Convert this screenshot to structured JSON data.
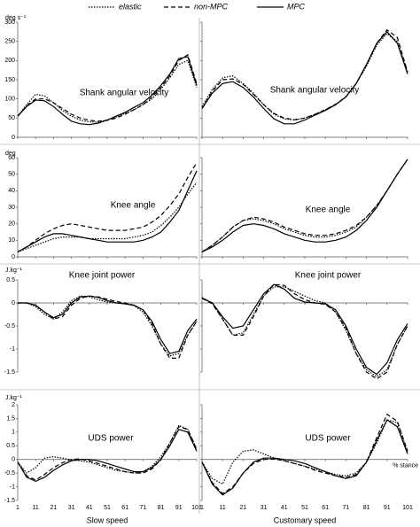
{
  "legend": [
    {
      "name": "elastic",
      "dash": "1.5 1.5"
    },
    {
      "name": "non-MPC",
      "dash": "5 3"
    },
    {
      "name": "MPC",
      "dash": "none"
    }
  ],
  "chart_data": [
    {
      "type": "line",
      "title": "Shank angular velocity",
      "ylabel": "deg s⁻¹",
      "ytick_labels": true,
      "xtick_labels": false,
      "x": [
        1,
        6,
        11,
        16,
        21,
        26,
        31,
        36,
        41,
        46,
        51,
        56,
        61,
        66,
        71,
        76,
        81,
        86,
        91,
        96,
        101
      ],
      "xlim": [
        1,
        101
      ],
      "xticks": [
        1,
        11,
        21,
        31,
        41,
        51,
        61,
        71,
        81,
        91,
        101
      ],
      "ylim": [
        0,
        300
      ],
      "yticks": [
        0,
        50,
        100,
        150,
        200,
        250,
        300
      ],
      "series": [
        {
          "values": [
            55,
            85,
            112,
            108,
            90,
            70,
            55,
            45,
            40,
            40,
            45,
            53,
            62,
            72,
            85,
            100,
            125,
            155,
            190,
            200,
            130
          ]
        },
        {
          "values": [
            55,
            82,
            100,
            100,
            90,
            75,
            60,
            50,
            44,
            42,
            44,
            50,
            60,
            72,
            85,
            105,
            130,
            160,
            200,
            215,
            140
          ]
        },
        {
          "values": [
            55,
            80,
            97,
            95,
            80,
            60,
            42,
            35,
            33,
            37,
            45,
            55,
            65,
            78,
            90,
            110,
            135,
            165,
            205,
            210,
            135
          ]
        }
      ]
    },
    {
      "type": "line",
      "title": "Shank angular velocity",
      "ytick_labels": false,
      "xtick_labels": false,
      "x": [
        1,
        6,
        11,
        16,
        21,
        26,
        31,
        36,
        41,
        46,
        51,
        56,
        61,
        66,
        71,
        76,
        81,
        86,
        91,
        96,
        101
      ],
      "xlim": [
        1,
        101
      ],
      "xticks": [
        1,
        11,
        21,
        31,
        41,
        51,
        61,
        71,
        81,
        91,
        101
      ],
      "ylim": [
        0,
        300
      ],
      "yticks": [
        0,
        50,
        100,
        150,
        200,
        250,
        300
      ],
      "series": [
        {
          "values": [
            80,
            125,
            155,
            160,
            140,
            115,
            85,
            60,
            48,
            45,
            50,
            60,
            72,
            85,
            105,
            140,
            185,
            240,
            270,
            250,
            170
          ]
        },
        {
          "values": [
            75,
            120,
            150,
            152,
            138,
            112,
            85,
            62,
            50,
            46,
            50,
            60,
            72,
            86,
            106,
            140,
            188,
            245,
            280,
            260,
            170
          ]
        },
        {
          "values": [
            75,
            115,
            140,
            145,
            130,
            105,
            75,
            48,
            35,
            35,
            45,
            58,
            70,
            85,
            105,
            140,
            190,
            245,
            275,
            245,
            165
          ]
        }
      ]
    },
    {
      "type": "line",
      "title": "Knee angle",
      "ylabel": "deg",
      "ytick_labels": true,
      "xtick_labels": false,
      "x": [
        1,
        6,
        11,
        16,
        21,
        26,
        31,
        36,
        41,
        46,
        51,
        56,
        61,
        66,
        71,
        76,
        81,
        86,
        91,
        96,
        101
      ],
      "xlim": [
        1,
        101
      ],
      "xticks": [
        1,
        11,
        21,
        31,
        41,
        51,
        61,
        71,
        81,
        91,
        101
      ],
      "ylim": [
        0,
        60
      ],
      "yticks": [
        0,
        10,
        20,
        30,
        40,
        50,
        60
      ],
      "series": [
        {
          "values": [
            3,
            5,
            7,
            9,
            11,
            12,
            12,
            12,
            11,
            11,
            11,
            11,
            11,
            12,
            13,
            15,
            19,
            24,
            30,
            38,
            45
          ]
        },
        {
          "values": [
            3,
            6,
            10,
            14,
            17,
            19,
            20,
            19,
            18,
            17,
            16,
            16,
            16,
            17,
            18,
            21,
            25,
            31,
            38,
            48,
            57
          ]
        },
        {
          "values": [
            3,
            6,
            9,
            12,
            14,
            14,
            13,
            12,
            11,
            10,
            9,
            9,
            9,
            9,
            10,
            12,
            15,
            21,
            28,
            40,
            52
          ]
        }
      ]
    },
    {
      "type": "line",
      "title": "Knee angle",
      "ytick_labels": false,
      "xtick_labels": false,
      "x": [
        1,
        6,
        11,
        16,
        21,
        26,
        31,
        36,
        41,
        46,
        51,
        56,
        61,
        66,
        71,
        76,
        81,
        86,
        91,
        96,
        101
      ],
      "xlim": [
        1,
        101
      ],
      "xticks": [
        1,
        11,
        21,
        31,
        41,
        51,
        61,
        71,
        81,
        91,
        101
      ],
      "ylim": [
        0,
        60
      ],
      "yticks": [
        0,
        10,
        20,
        30,
        40,
        50,
        60
      ],
      "series": [
        {
          "values": [
            3,
            7,
            12,
            18,
            22,
            23,
            22,
            20,
            17,
            15,
            13,
            12,
            12,
            13,
            15,
            18,
            24,
            31,
            40,
            50,
            59
          ]
        },
        {
          "values": [
            3,
            7,
            12,
            18,
            22,
            24,
            23,
            21,
            18,
            16,
            14,
            13,
            13,
            14,
            16,
            19,
            24,
            31,
            40,
            50,
            59
          ]
        },
        {
          "values": [
            3,
            6,
            10,
            15,
            19,
            20,
            19,
            17,
            14,
            12,
            10,
            9,
            9,
            10,
            12,
            16,
            22,
            30,
            40,
            50,
            59
          ]
        }
      ]
    },
    {
      "type": "line",
      "title": "Knee joint power",
      "ylabel": "J.kg⁻¹",
      "ytick_labels": true,
      "xtick_labels": false,
      "x": [
        1,
        6,
        11,
        16,
        21,
        26,
        31,
        36,
        41,
        46,
        51,
        56,
        61,
        66,
        71,
        76,
        81,
        86,
        91,
        96,
        101
      ],
      "xlim": [
        1,
        101
      ],
      "xticks": [
        1,
        11,
        21,
        31,
        41,
        51,
        61,
        71,
        81,
        91,
        101
      ],
      "ylim": [
        -1.5,
        0.5
      ],
      "yticks": [
        -1.5,
        -1,
        -0.5,
        0,
        0.5
      ],
      "series": [
        {
          "values": [
            0,
            0,
            -0.08,
            -0.25,
            -0.35,
            -0.2,
            0.05,
            0.15,
            0.13,
            0.07,
            0.02,
            0,
            -0.02,
            -0.06,
            -0.2,
            -0.5,
            -0.9,
            -1.15,
            -1.1,
            -0.7,
            -0.4
          ]
        },
        {
          "values": [
            0,
            0,
            -0.05,
            -0.2,
            -0.35,
            -0.3,
            -0.05,
            0.1,
            0.15,
            0.13,
            0.08,
            0.03,
            0,
            -0.05,
            -0.15,
            -0.45,
            -0.9,
            -1.2,
            -1.2,
            -0.7,
            -0.4
          ]
        },
        {
          "values": [
            0,
            0,
            -0.05,
            -0.2,
            -0.32,
            -0.25,
            0,
            0.13,
            0.15,
            0.12,
            0.05,
            0,
            -0.02,
            -0.05,
            -0.15,
            -0.4,
            -0.8,
            -1.1,
            -1.05,
            -0.6,
            -0.35
          ]
        }
      ]
    },
    {
      "type": "line",
      "title": "Knee joint power",
      "ytick_labels": false,
      "xtick_labels": false,
      "x": [
        1,
        6,
        11,
        16,
        21,
        26,
        31,
        36,
        41,
        46,
        51,
        56,
        61,
        66,
        71,
        76,
        81,
        86,
        91,
        96,
        101
      ],
      "xlim": [
        1,
        101
      ],
      "xticks": [
        1,
        11,
        21,
        31,
        41,
        51,
        61,
        71,
        81,
        91,
        101
      ],
      "ylim": [
        -1.5,
        0.5
      ],
      "yticks": [
        -1.5,
        -1,
        -0.5,
        0,
        0.5
      ],
      "series": [
        {
          "values": [
            0.12,
            0,
            -0.35,
            -0.7,
            -0.65,
            -0.25,
            0.15,
            0.35,
            0.35,
            0.25,
            0.15,
            0.05,
            0,
            -0.2,
            -0.6,
            -1.1,
            -1.45,
            -1.6,
            -1.45,
            -0.9,
            -0.5
          ]
        },
        {
          "values": [
            0.1,
            -0.02,
            -0.35,
            -0.7,
            -0.7,
            -0.3,
            0.15,
            0.4,
            0.38,
            0.2,
            0.07,
            0,
            -0.03,
            -0.2,
            -0.55,
            -1.1,
            -1.5,
            -1.65,
            -1.5,
            -0.9,
            -0.5
          ]
        },
        {
          "values": [
            0.1,
            0,
            -0.3,
            -0.55,
            -0.5,
            -0.15,
            0.2,
            0.4,
            0.3,
            0.1,
            0.02,
            0,
            -0.02,
            -0.15,
            -0.5,
            -1,
            -1.4,
            -1.55,
            -1.3,
            -0.8,
            -0.45
          ]
        }
      ]
    },
    {
      "type": "line",
      "title": "UDS power",
      "ylabel": "J.kg⁻¹",
      "xlabel": "Slow speed",
      "ytick_labels": true,
      "xtick_labels": true,
      "x": [
        1,
        6,
        11,
        16,
        21,
        26,
        31,
        36,
        41,
        46,
        51,
        56,
        61,
        66,
        71,
        76,
        81,
        86,
        91,
        96,
        101
      ],
      "xlim": [
        1,
        101
      ],
      "xticks": [
        1,
        11,
        21,
        31,
        41,
        51,
        61,
        71,
        81,
        91,
        101
      ],
      "ylim": [
        -1.5,
        2
      ],
      "yticks": [
        -1.5,
        -1,
        -0.5,
        0,
        0.5,
        1,
        1.5,
        2
      ],
      "series": [
        {
          "values": [
            -0.1,
            -0.5,
            -0.3,
            0.05,
            0.1,
            0.05,
            -0.02,
            -0.05,
            -0.1,
            -0.2,
            -0.3,
            -0.4,
            -0.45,
            -0.5,
            -0.45,
            -0.25,
            0.1,
            0.6,
            1.25,
            1.1,
            0.4
          ]
        },
        {
          "values": [
            -0.1,
            -0.6,
            -0.75,
            -0.55,
            -0.3,
            -0.12,
            0,
            0.02,
            -0.05,
            -0.15,
            -0.25,
            -0.35,
            -0.45,
            -0.5,
            -0.5,
            -0.35,
            0,
            0.6,
            1.2,
            1.1,
            0.35
          ]
        },
        {
          "values": [
            -0.1,
            -0.65,
            -0.8,
            -0.65,
            -0.4,
            -0.2,
            -0.05,
            0,
            0,
            -0.05,
            -0.15,
            -0.25,
            -0.35,
            -0.45,
            -0.45,
            -0.3,
            0,
            0.5,
            1.1,
            1,
            0.3
          ]
        }
      ]
    },
    {
      "type": "line",
      "title": "UDS power",
      "xlabel": "Customary speed",
      "annotation": "% stance",
      "ytick_labels": false,
      "xtick_labels": true,
      "x": [
        1,
        6,
        11,
        16,
        21,
        26,
        31,
        36,
        41,
        46,
        51,
        56,
        61,
        66,
        71,
        76,
        81,
        86,
        91,
        96,
        101
      ],
      "xlim": [
        1,
        101
      ],
      "xticks": [
        1,
        11,
        21,
        31,
        41,
        51,
        61,
        71,
        81,
        91,
        101
      ],
      "ylim": [
        -1.5,
        2
      ],
      "yticks": [
        -1.5,
        -1,
        -0.5,
        0,
        0.5,
        1,
        1.5,
        2
      ],
      "series": [
        {
          "values": [
            -0.1,
            -0.7,
            -0.9,
            -0.1,
            0.3,
            0.35,
            0.2,
            0.05,
            -0.05,
            -0.15,
            -0.25,
            -0.35,
            -0.45,
            -0.55,
            -0.6,
            -0.5,
            -0.1,
            0.6,
            1.45,
            1.35,
            0.3
          ]
        },
        {
          "values": [
            -0.1,
            -0.85,
            -1.25,
            -1,
            -0.5,
            -0.15,
            0,
            0.02,
            -0.05,
            -0.15,
            -0.25,
            -0.4,
            -0.5,
            -0.6,
            -0.65,
            -0.55,
            -0.1,
            0.8,
            1.65,
            1.4,
            0.3
          ]
        },
        {
          "values": [
            -0.1,
            -0.9,
            -1.3,
            -1.05,
            -0.5,
            -0.1,
            0.05,
            0.05,
            0,
            -0.05,
            -0.15,
            -0.3,
            -0.45,
            -0.6,
            -0.7,
            -0.6,
            -0.1,
            0.7,
            1.45,
            1.2,
            0.2
          ]
        }
      ]
    }
  ]
}
